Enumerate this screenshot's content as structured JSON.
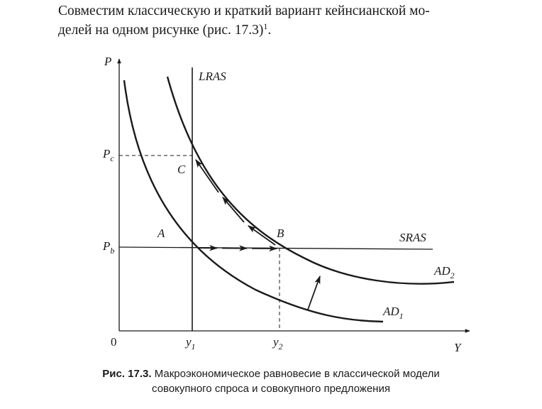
{
  "paragraph": {
    "line1": "Совместим классическую и краткий вариант кейнсианской мо-",
    "line2_main": "делей на одном рисунке (рис. 17.3)",
    "line2_sup": "1",
    "line2_tail": "."
  },
  "figure": {
    "axis": {
      "y_label": "P",
      "x_label": "Y",
      "origin_label": "0"
    },
    "y_ticks": [
      {
        "base": "P",
        "sub": "c"
      },
      {
        "base": "P",
        "sub": "b"
      }
    ],
    "x_ticks": [
      {
        "base": "y",
        "sub": "1"
      },
      {
        "base": "y",
        "sub": "2"
      }
    ],
    "curves": {
      "lras": "LRAS",
      "sras": "SRAS",
      "ad1": {
        "base": "AD",
        "sub": "1"
      },
      "ad2": {
        "base": "AD",
        "sub": "2"
      }
    },
    "points": {
      "a": "A",
      "b": "B",
      "c": "C"
    }
  },
  "caption": {
    "label": "Рис. 17.3.",
    "line1": "Макроэкономическое равновесие в классической модели",
    "line2": "совокупного спроса и совокупного предложения"
  }
}
